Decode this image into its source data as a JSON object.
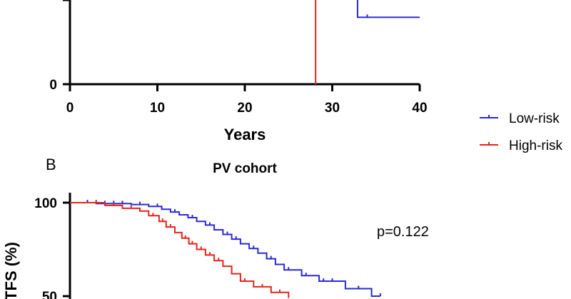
{
  "chart_data": [
    {
      "panel": "A",
      "type": "line",
      "subtype": "kaplan-meier",
      "title": "",
      "xlabel": "Years",
      "ylabel": "",
      "xlim": [
        0,
        40
      ],
      "ylim": [
        0,
        100
      ],
      "xticks": [
        0,
        10,
        20,
        30,
        40
      ],
      "xtick_labels": [
        "0",
        "10",
        "20",
        "30",
        "40"
      ],
      "yticks": [
        0
      ],
      "ytick_labels": [
        "0"
      ],
      "series": [
        {
          "name": "Low-risk",
          "color": "#2a2ad6",
          "steps": [
            [
              32.9,
              100
            ],
            [
              32.9,
              25
            ],
            [
              40,
              25
            ]
          ],
          "censor": [
            [
              34.0,
              25
            ]
          ]
        },
        {
          "name": "High-risk",
          "color": "#e0261b",
          "steps": [
            [
              25,
              100
            ],
            [
              25,
              40
            ],
            [
              28.1,
              40
            ],
            [
              28.1,
              0
            ]
          ],
          "censor": []
        }
      ]
    },
    {
      "panel": "B",
      "type": "line",
      "subtype": "kaplan-meier",
      "title": "PV cohort",
      "xlabel": "",
      "ylabel": "TFS (%)",
      "xlim": [
        0,
        40
      ],
      "ylim": [
        0,
        100
      ],
      "yticks": [
        50,
        100
      ],
      "ytick_labels": [
        "50",
        "100"
      ],
      "annotation": "p=0.122",
      "series": [
        {
          "name": "Low-risk",
          "color": "#2a2ad6",
          "steps": [
            [
              0,
              100
            ],
            [
              3,
              100
            ],
            [
              3,
              99.5
            ],
            [
              7,
              99.5
            ],
            [
              7,
              99
            ],
            [
              9,
              99
            ],
            [
              9,
              98
            ],
            [
              10.5,
              98
            ],
            [
              10.5,
              96.5
            ],
            [
              11.5,
              96.5
            ],
            [
              11.5,
              95
            ],
            [
              12.5,
              95
            ],
            [
              12.5,
              93.5
            ],
            [
              13.5,
              93.5
            ],
            [
              13.5,
              92
            ],
            [
              14.5,
              92
            ],
            [
              14.5,
              90
            ],
            [
              15.5,
              90
            ],
            [
              15.5,
              88
            ],
            [
              16.5,
              88
            ],
            [
              16.5,
              85.5
            ],
            [
              17.5,
              85.5
            ],
            [
              17.5,
              83
            ],
            [
              18.5,
              83
            ],
            [
              18.5,
              80.5
            ],
            [
              19.5,
              80.5
            ],
            [
              19.5,
              78
            ],
            [
              20.5,
              78
            ],
            [
              20.5,
              75.5
            ],
            [
              21.5,
              75.5
            ],
            [
              21.5,
              73
            ],
            [
              22.5,
              73
            ],
            [
              22.5,
              70
            ],
            [
              23.5,
              70
            ],
            [
              23.5,
              67
            ],
            [
              24.5,
              67
            ],
            [
              24.5,
              64
            ],
            [
              26.5,
              64
            ],
            [
              26.5,
              61
            ],
            [
              28.5,
              61
            ],
            [
              28.5,
              58
            ],
            [
              31.5,
              58
            ],
            [
              31.5,
              54
            ],
            [
              34.5,
              54
            ],
            [
              34.5,
              50
            ],
            [
              35.5,
              50
            ]
          ],
          "censor": [
            [
              2,
              100
            ],
            [
              4,
              99.5
            ],
            [
              5,
              99.5
            ],
            [
              6,
              99.5
            ],
            [
              8,
              99
            ],
            [
              10,
              98
            ],
            [
              12,
              95
            ],
            [
              14,
              92
            ],
            [
              16,
              88
            ],
            [
              18,
              83
            ],
            [
              19,
              80.5
            ],
            [
              21,
              75.5
            ],
            [
              23,
              70
            ],
            [
              25,
              64
            ],
            [
              27,
              61
            ],
            [
              29,
              58
            ],
            [
              30,
              58
            ],
            [
              33,
              54
            ],
            [
              35.5,
              50
            ]
          ]
        },
        {
          "name": "High-risk",
          "color": "#e0261b",
          "steps": [
            [
              0,
              100
            ],
            [
              4,
              100
            ],
            [
              4,
              98.5
            ],
            [
              6,
              98.5
            ],
            [
              6,
              97
            ],
            [
              8,
              97
            ],
            [
              8,
              95.5
            ],
            [
              9,
              95.5
            ],
            [
              9,
              93
            ],
            [
              10.2,
              93
            ],
            [
              10.2,
              90
            ],
            [
              11,
              90
            ],
            [
              11,
              87
            ],
            [
              12,
              87
            ],
            [
              12,
              84
            ],
            [
              12.8,
              84
            ],
            [
              12.8,
              81
            ],
            [
              13.6,
              81
            ],
            [
              13.6,
              78
            ],
            [
              14.5,
              78
            ],
            [
              14.5,
              75
            ],
            [
              15.5,
              75
            ],
            [
              15.5,
              72
            ],
            [
              16.5,
              72
            ],
            [
              16.5,
              69
            ],
            [
              17.5,
              69
            ],
            [
              17.5,
              66
            ],
            [
              18.5,
              66
            ],
            [
              18.5,
              62
            ],
            [
              19.5,
              62
            ],
            [
              19.5,
              58
            ],
            [
              21,
              58
            ],
            [
              21,
              55
            ],
            [
              23,
              55
            ],
            [
              23,
              52
            ],
            [
              25,
              52
            ],
            [
              25,
              49
            ]
          ],
          "censor": [
            [
              3,
              100
            ],
            [
              5,
              98.5
            ],
            [
              7,
              97
            ],
            [
              9.5,
              93
            ],
            [
              10.6,
              90
            ],
            [
              11.5,
              87
            ],
            [
              13.2,
              81
            ],
            [
              14,
              78
            ],
            [
              15,
              75
            ],
            [
              16,
              72
            ],
            [
              17,
              69
            ],
            [
              20,
              58
            ],
            [
              22,
              55
            ],
            [
              24,
              52
            ]
          ]
        }
      ]
    }
  ],
  "panel_b_letter": "B",
  "legend": {
    "items": [
      {
        "label": "Low-risk",
        "color": "#2a2ad6"
      },
      {
        "label": "High-risk",
        "color": "#e0261b"
      }
    ]
  }
}
